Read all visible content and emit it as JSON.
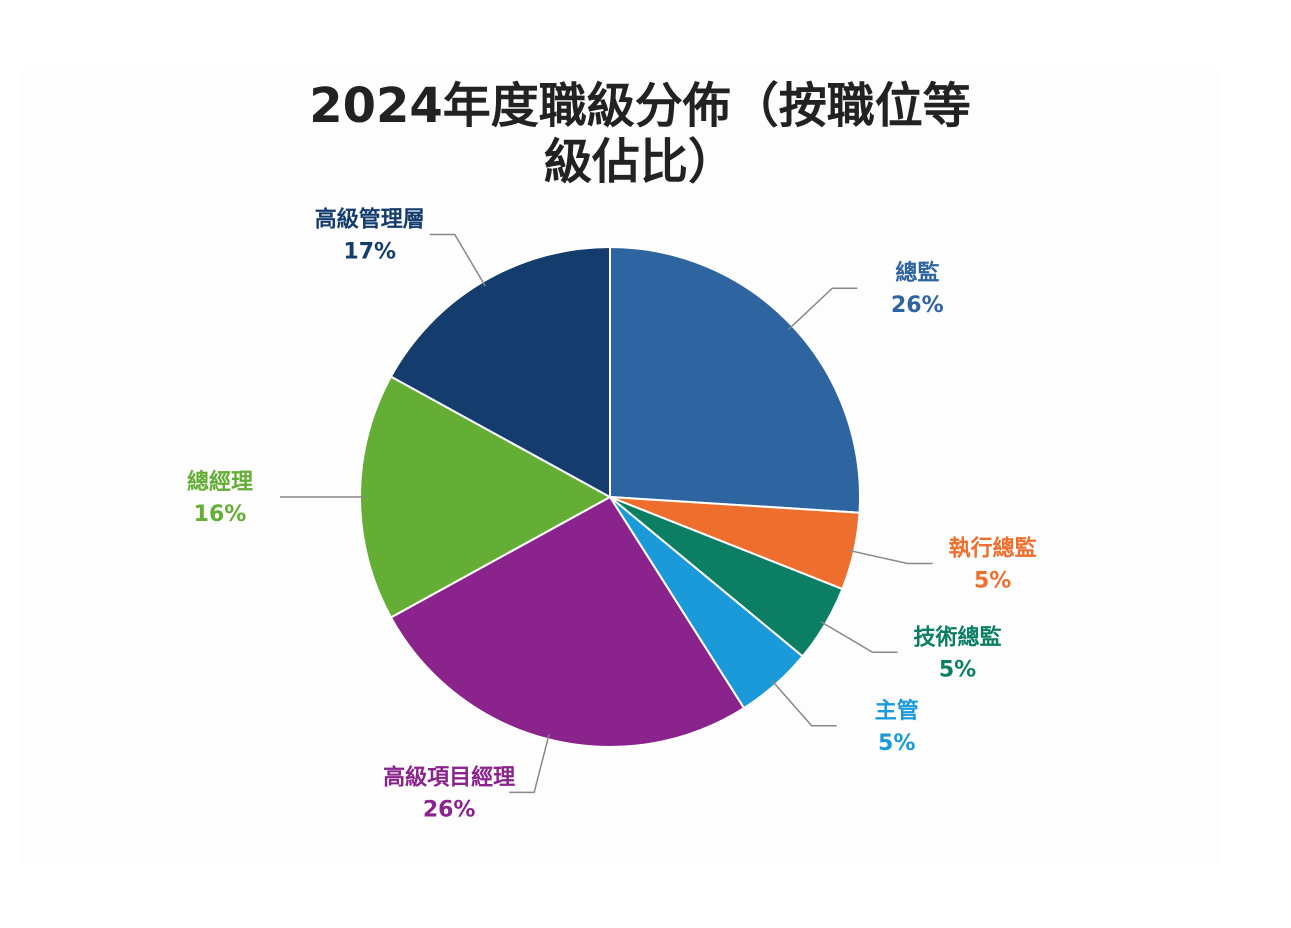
{
  "chart_data": {
    "type": "pie",
    "title": "2024年度職級分佈（按職位等級佔比）",
    "categories": [
      "總監",
      "執行總監",
      "技術總監",
      "主管",
      "高級項目經理",
      "總經理",
      "高級管理層"
    ],
    "values": [
      26,
      5,
      5,
      5,
      26,
      16,
      17
    ],
    "value_labels": [
      "26%",
      "5%",
      "5%",
      "5%",
      "26%",
      "16%",
      "17%"
    ],
    "colors": [
      "#2e64a0",
      "#ee6f2d",
      "#0b7e64",
      "#1a9ad9",
      "#8b238c",
      "#65ae35",
      "#143d6e"
    ]
  }
}
